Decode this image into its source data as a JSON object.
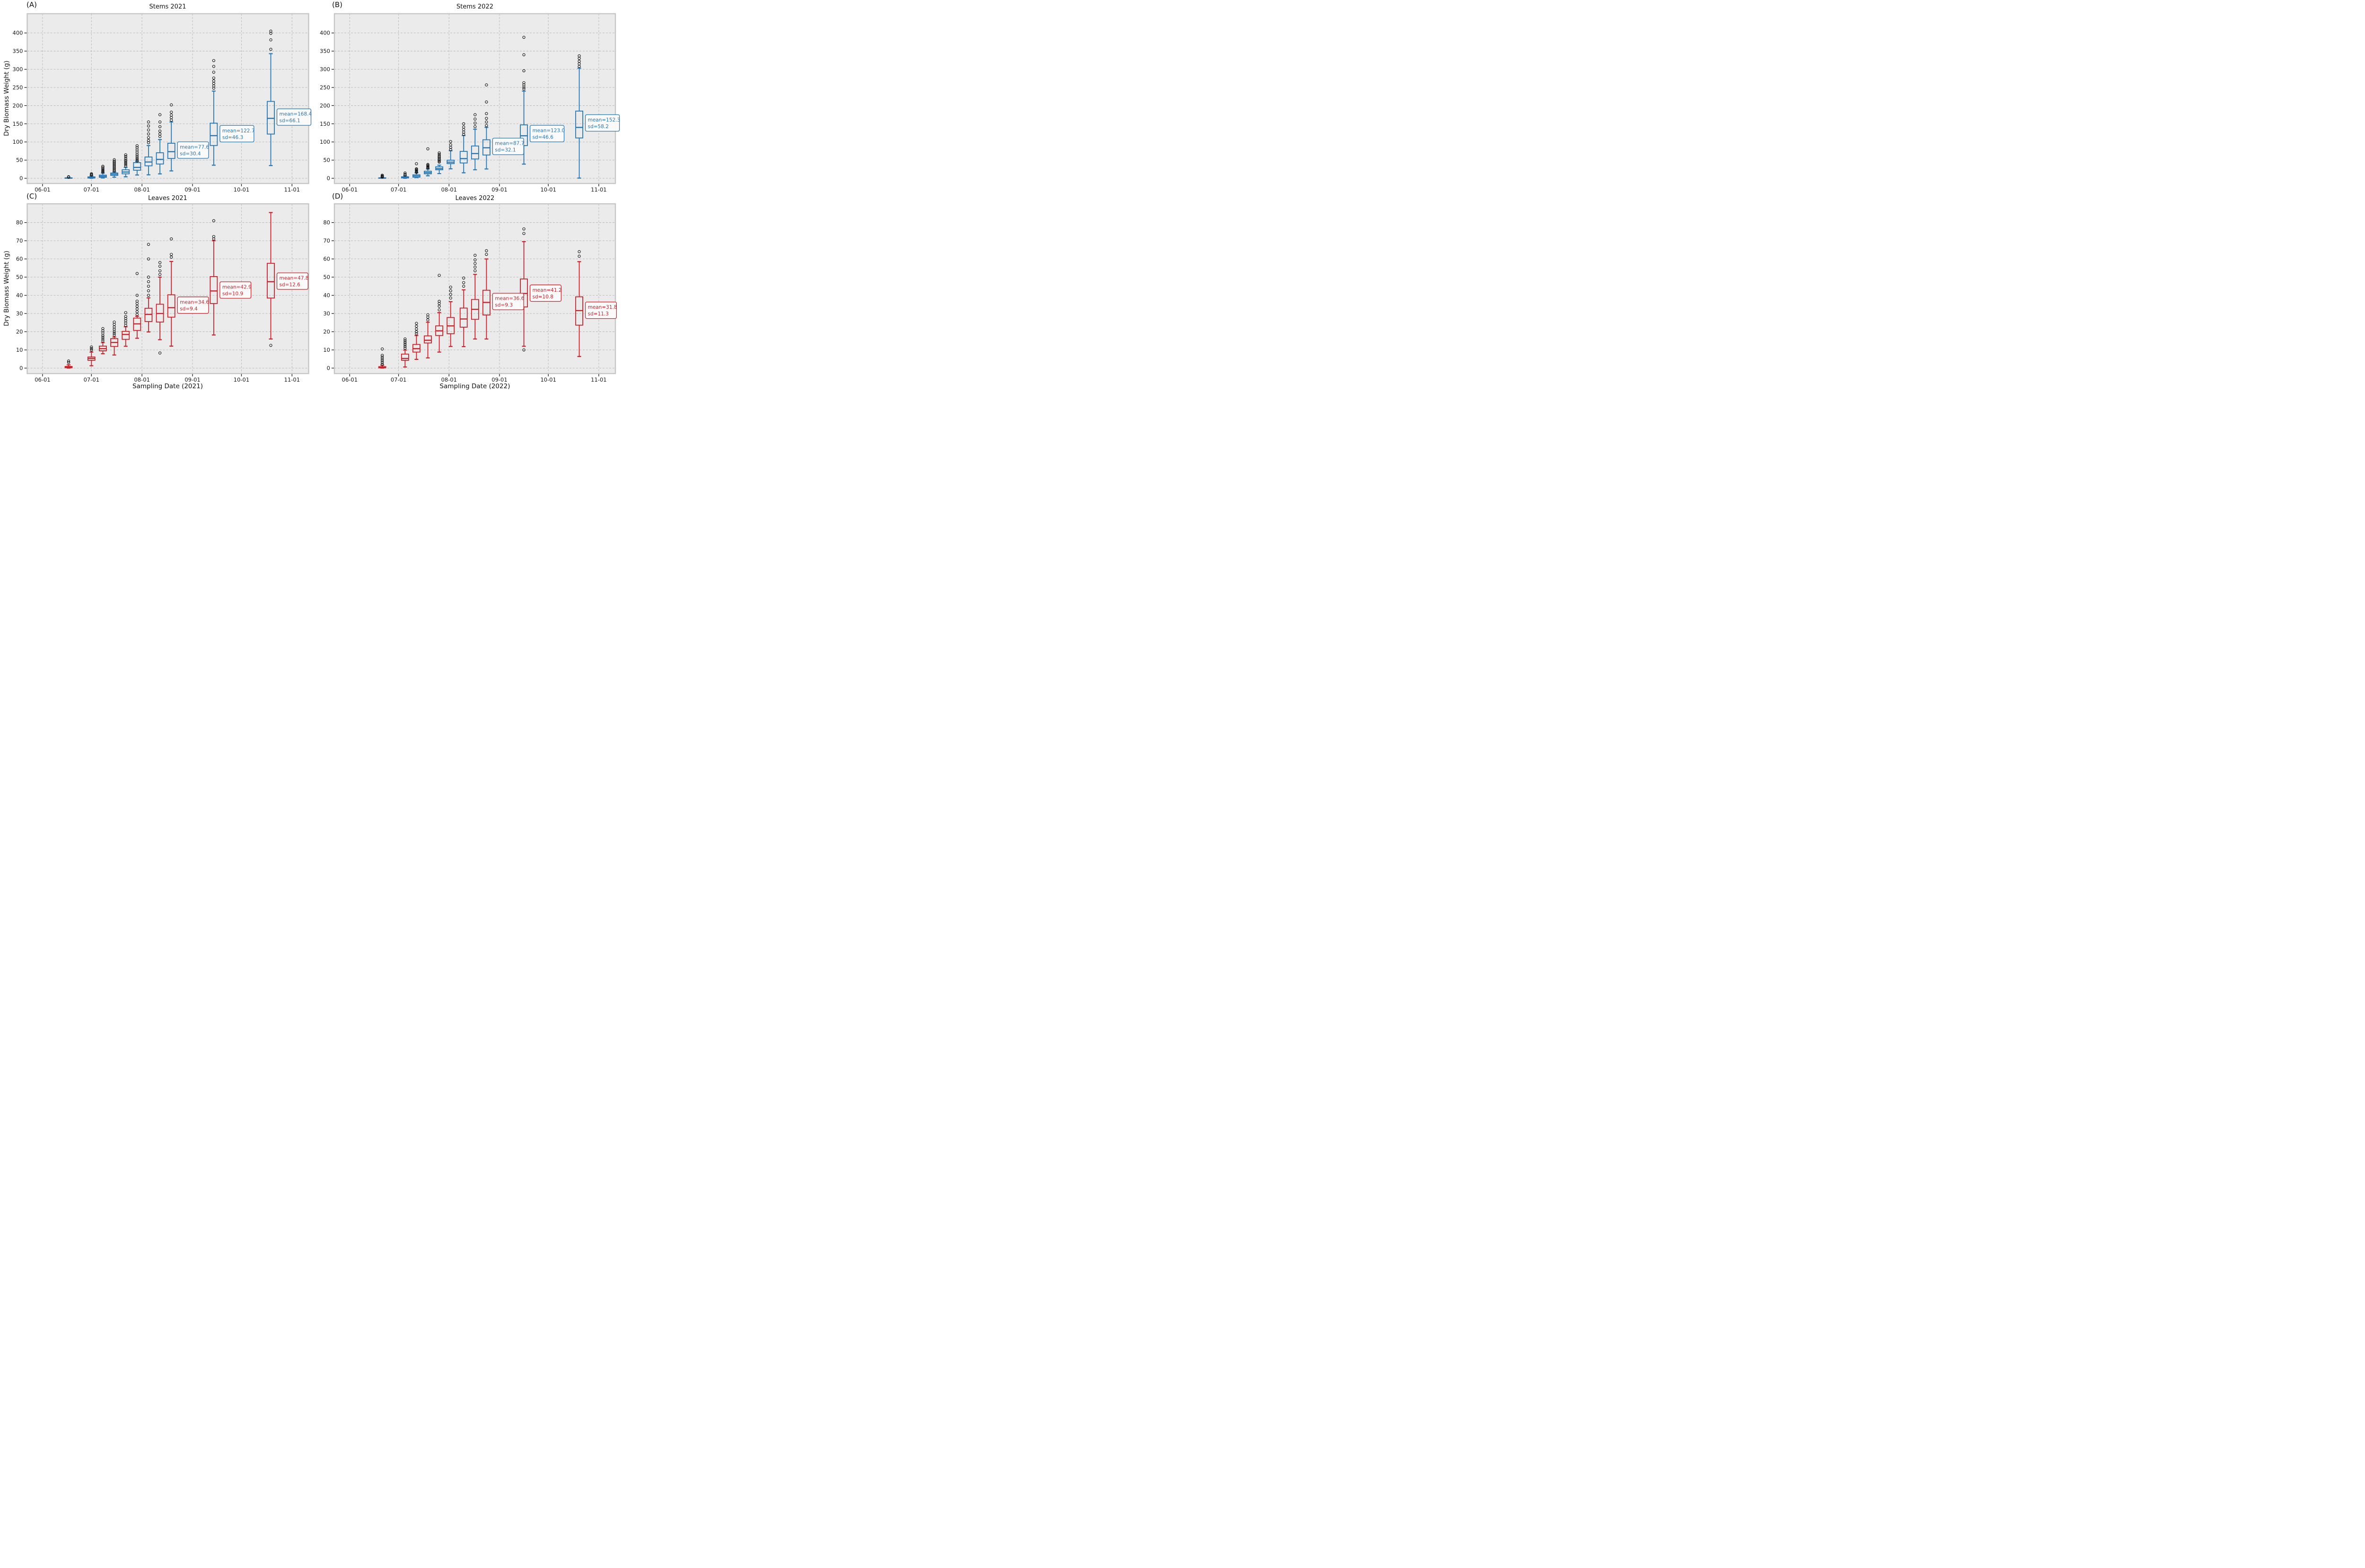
{
  "figure": {
    "background": "#ffffff",
    "plot_background": "#ebebeb",
    "grid_color": "#b5b5b5",
    "spine_color": "#c6c6c6",
    "tick_color": "#1a1a1a",
    "outlier_color": "#111111",
    "annotation_background": "#fbfbfb",
    "stems_color": "#2878b5",
    "leaves_color": "#c9232b"
  },
  "chart_data": [
    {
      "panel": "A",
      "letter": "(A)",
      "title": "Stems 2021",
      "type": "boxplot",
      "color": "#2878b5",
      "ylabel": "Dry Biomass Weight (g)",
      "xlabel": null,
      "grid": true,
      "xticks": [
        "06-01",
        "07-01",
        "08-01",
        "09-01",
        "10-01",
        "11-01"
      ],
      "yticks": [
        0,
        50,
        100,
        150,
        200,
        250,
        300,
        350,
        400
      ],
      "xlim_days": [
        -9.4,
        163.2
      ],
      "ylim": [
        -14.3,
        453
      ],
      "boxes": [
        {
          "date": "06-17",
          "low": 0,
          "q1": 0.2,
          "median": 0.6,
          "q3": 1.2,
          "high": 2.2,
          "outliers": [
            3.2,
            4.2
          ]
        },
        {
          "date": "07-01",
          "low": 0,
          "q1": 0.6,
          "median": 2,
          "q3": 3.8,
          "high": 6.2,
          "outliers": [
            8.8,
            10.5,
            12.5
          ]
        },
        {
          "date": "07-08",
          "low": 0.8,
          "q1": 2.6,
          "median": 5.6,
          "q3": 8.7,
          "high": 14.2,
          "outliers": [
            17,
            19,
            21,
            23,
            26,
            30,
            33
          ]
        },
        {
          "date": "07-15",
          "low": 3,
          "q1": 7.9,
          "median": 11.2,
          "q3": 14.5,
          "high": 17.2,
          "outliers": [
            20,
            23,
            26,
            29,
            32,
            35,
            38,
            41,
            44,
            47,
            51
          ]
        },
        {
          "date": "07-22",
          "low": 4.1,
          "q1": 12.3,
          "median": 17.3,
          "q3": 23.3,
          "high": 29.9,
          "outliers": [
            34,
            38,
            42,
            46,
            50,
            55,
            60,
            64.5
          ]
        },
        {
          "date": "07-29",
          "low": 9,
          "q1": 22.2,
          "median": 29.9,
          "q3": 43.1,
          "high": 46.4,
          "outliers": [
            48,
            52,
            56,
            61,
            66,
            72,
            78,
            84,
            89.5
          ]
        },
        {
          "date": "08-05",
          "low": 9.5,
          "q1": 34.3,
          "median": 44.8,
          "q3": 58.6,
          "high": 90,
          "outliers": [
            98,
            104,
            112,
            122,
            133,
            144,
            155
          ]
        },
        {
          "date": "08-12",
          "low": 12.1,
          "q1": 39.3,
          "median": 52,
          "q3": 70.2,
          "high": 106.5,
          "outliers": [
            115,
            122,
            130,
            142,
            155,
            175
          ]
        },
        {
          "date": "08-19",
          "low": 20.3,
          "q1": 54.5,
          "median": 73.2,
          "q3": 96.4,
          "high": 155,
          "outliers": [
            160,
            167,
            174,
            182,
            202
          ],
          "mean": 77.6,
          "sd": 30.4,
          "label_lines": [
            "mean=77.6",
            "sd=30.4"
          ]
        },
        {
          "date": "09-14",
          "low": 36,
          "q1": 90.2,
          "median": 117.3,
          "q3": 151.7,
          "high": 240,
          "outliers": [
            248,
            254,
            261,
            268,
            276,
            292,
            308,
            324
          ],
          "mean": 122.7,
          "sd": 46.3,
          "label_lines": [
            "mean=122.7",
            "sd=46.3"
          ]
        },
        {
          "date": "10-19",
          "low": 35,
          "q1": 121.7,
          "median": 165,
          "q3": 211.6,
          "high": 343,
          "outliers": [
            355,
            381,
            399,
            405
          ],
          "mean": 168.4,
          "sd": 66.1,
          "label_lines": [
            "mean=168.4",
            "sd=66.1"
          ]
        }
      ]
    },
    {
      "panel": "B",
      "letter": "(B)",
      "title": "Stems 2022",
      "type": "boxplot",
      "color": "#2878b5",
      "ylabel": null,
      "xlabel": null,
      "grid": true,
      "xticks": [
        "06-01",
        "07-01",
        "08-01",
        "09-01",
        "10-01",
        "11-01"
      ],
      "yticks": [
        0,
        50,
        100,
        150,
        200,
        250,
        300,
        350,
        400
      ],
      "xlim_days": [
        -9.4,
        163.2
      ],
      "ylim": [
        -14.3,
        453
      ],
      "boxes": [
        {
          "date": "06-21",
          "low": 0,
          "q1": 0.2,
          "median": 0.7,
          "q3": 1.3,
          "high": 2.6,
          "outliers": [
            3.5,
            5,
            6.5,
            8.5
          ]
        },
        {
          "date": "07-05",
          "low": 0,
          "q1": 1,
          "median": 2.2,
          "q3": 4.1,
          "high": 6.3,
          "outliers": [
            9,
            11,
            14.5
          ]
        },
        {
          "date": "07-12",
          "low": 1.9,
          "q1": 3,
          "median": 6.3,
          "q3": 9.6,
          "high": 15.1,
          "outliers": [
            16.5,
            18,
            20,
            22,
            24,
            26,
            40
          ]
        },
        {
          "date": "07-19",
          "low": 6.8,
          "q1": 12.3,
          "median": 15.6,
          "q3": 19.5,
          "high": 25.6,
          "outliers": [
            28,
            30,
            32,
            34,
            36,
            38,
            81
          ]
        },
        {
          "date": "07-26",
          "low": 12.9,
          "q1": 23.4,
          "median": 26.7,
          "q3": 31.6,
          "high": 36,
          "outliers": [
            44.5,
            47,
            50,
            53,
            56,
            59,
            62,
            66,
            70
          ]
        },
        {
          "date": "08-02",
          "low": 26,
          "q1": 40.4,
          "median": 44.3,
          "q3": 49.8,
          "high": 75.7,
          "outliers": [
            79,
            85,
            92,
            101
          ]
        },
        {
          "date": "08-10",
          "low": 15.1,
          "q1": 42.1,
          "median": 54.2,
          "q3": 74,
          "high": 117.5,
          "outliers": [
            121,
            127,
            134,
            141,
            150
          ]
        },
        {
          "date": "08-17",
          "low": 23.4,
          "q1": 53.1,
          "median": 68,
          "q3": 88.9,
          "high": 135,
          "outliers": [
            142,
            152,
            163,
            175
          ]
        },
        {
          "date": "08-24",
          "low": 25.6,
          "q1": 64.1,
          "median": 84,
          "q3": 106,
          "high": 140,
          "outliers": [
            145,
            155,
            165,
            178,
            210,
            257
          ],
          "mean": 87.7,
          "sd": 32.1,
          "label_lines": [
            "mean=87.7",
            "sd=32.1"
          ]
        },
        {
          "date": "09-16",
          "low": 39,
          "q1": 90,
          "median": 117,
          "q3": 147,
          "high": 240,
          "outliers": [
            246,
            251,
            257,
            263,
            296,
            340,
            388
          ],
          "mean": 123.0,
          "sd": 46.6,
          "label_lines": [
            "mean=123.0",
            "sd=46.6"
          ]
        },
        {
          "date": "10-20",
          "low": 0.5,
          "q1": 111,
          "median": 140,
          "q3": 185,
          "high": 303,
          "outliers": [
            308,
            315,
            322,
            330,
            337
          ],
          "mean": 152.3,
          "sd": 58.2,
          "label_lines": [
            "mean=152.3",
            "sd=58.2"
          ]
        }
      ]
    },
    {
      "panel": "C",
      "letter": "(C)",
      "title": "Leaves 2021",
      "type": "boxplot",
      "color": "#c9232b",
      "ylabel": "Dry Biomass Weight (g)",
      "xlabel": "Sampling Date (2021)",
      "grid": true,
      "xticks": [
        "06-01",
        "07-01",
        "08-01",
        "09-01",
        "10-01",
        "11-01"
      ],
      "yticks": [
        0,
        10,
        20,
        30,
        40,
        50,
        60,
        70,
        80
      ],
      "xlim_days": [
        -9.4,
        163.2
      ],
      "ylim": [
        -3,
        90.3
      ],
      "boxes": [
        {
          "date": "06-17",
          "low": 0,
          "q1": 0.2,
          "median": 0.5,
          "q3": 0.9,
          "high": 1.8,
          "outliers": [
            3.1,
            3.9
          ]
        },
        {
          "date": "07-01",
          "low": 1.3,
          "q1": 4.3,
          "median": 5.3,
          "q3": 6.1,
          "high": 8.8,
          "outliers": [
            9.9,
            10.7,
            11.6
          ]
        },
        {
          "date": "07-08",
          "low": 7.9,
          "q1": 9.5,
          "median": 10.7,
          "q3": 12.1,
          "high": 14,
          "outliers": [
            15,
            16,
            17,
            18,
            19.3,
            20.5,
            21.7
          ]
        },
        {
          "date": "07-15",
          "low": 7.2,
          "q1": 11.9,
          "median": 14.1,
          "q3": 16.2,
          "high": 17.1,
          "outliers": [
            18.2,
            19.2,
            20.2,
            21.4,
            22.6,
            24,
            25.3
          ]
        },
        {
          "date": "07-22",
          "low": 12,
          "q1": 15.8,
          "median": 18.5,
          "q3": 20.2,
          "high": 22.7,
          "outliers": [
            23.5,
            24.8,
            26,
            27.2,
            28.4,
            30.5
          ]
        },
        {
          "date": "07-29",
          "low": 16.4,
          "q1": 20.7,
          "median": 24.3,
          "q3": 27.5,
          "high": 28.5,
          "outliers": [
            29.5,
            31,
            32.5,
            34,
            35.5,
            36.8,
            40,
            52
          ]
        },
        {
          "date": "08-05",
          "low": 19.9,
          "q1": 25.6,
          "median": 29.5,
          "q3": 32.9,
          "high": 38.6,
          "outliers": [
            40,
            42.5,
            45,
            47.5,
            50,
            60,
            68
          ]
        },
        {
          "date": "08-12",
          "low": 15.6,
          "q1": 25.3,
          "median": 30,
          "q3": 35.1,
          "high": 50,
          "outliers": [
            8.3,
            51.5,
            53.5,
            56,
            58
          ]
        },
        {
          "date": "08-19",
          "low": 12.1,
          "q1": 28,
          "median": 33.2,
          "q3": 40.3,
          "high": 58.6,
          "outliers": [
            61,
            62.5,
            71
          ],
          "mean": 34.6,
          "sd": 9.4,
          "label_lines": [
            "mean=34.6",
            "sd=9.4"
          ]
        },
        {
          "date": "09-14",
          "low": 18.2,
          "q1": 35.5,
          "median": 42.4,
          "q3": 50.3,
          "high": 70,
          "outliers": [
            71,
            72.3,
            81
          ],
          "mean": 42.9,
          "sd": 10.9,
          "label_lines": [
            "mean=42.9",
            "sd=10.9"
          ]
        },
        {
          "date": "10-19",
          "low": 16,
          "q1": 38.5,
          "median": 47.5,
          "q3": 57.6,
          "high": 85.5,
          "outliers": [
            12.5
          ],
          "mean": 47.8,
          "sd": 12.6,
          "label_lines": [
            "mean=47.8",
            "sd=12.6"
          ]
        }
      ]
    },
    {
      "panel": "D",
      "letter": "(D)",
      "title": "Leaves 2022",
      "type": "boxplot",
      "color": "#c9232b",
      "ylabel": null,
      "xlabel": "Sampling Date (2022)",
      "grid": true,
      "xticks": [
        "06-01",
        "07-01",
        "08-01",
        "09-01",
        "10-01",
        "11-01"
      ],
      "yticks": [
        0,
        10,
        20,
        30,
        40,
        50,
        60,
        70,
        80
      ],
      "xlim_days": [
        -9.4,
        163.2
      ],
      "ylim": [
        -3,
        90.3
      ],
      "boxes": [
        {
          "date": "06-21",
          "low": 0,
          "q1": 0.15,
          "median": 0.4,
          "q3": 0.8,
          "high": 1.6,
          "outliers": [
            2,
            3,
            4,
            5,
            6,
            7,
            10.5
          ]
        },
        {
          "date": "07-05",
          "low": 0.6,
          "q1": 4.3,
          "median": 5.3,
          "q3": 7.7,
          "high": 9.9,
          "outliers": [
            11,
            12,
            13,
            14,
            15,
            16
          ]
        },
        {
          "date": "07-12",
          "low": 4.8,
          "q1": 8.8,
          "median": 10.7,
          "q3": 13,
          "high": 17.9,
          "outliers": [
            18.9,
            20,
            21.5,
            23,
            24.6
          ]
        },
        {
          "date": "07-19",
          "low": 5.6,
          "q1": 13.8,
          "median": 15.3,
          "q3": 17.7,
          "high": 25.2,
          "outliers": [
            26.5,
            28,
            29.3
          ]
        },
        {
          "date": "07-26",
          "low": 8.8,
          "q1": 17.9,
          "median": 20.5,
          "q3": 23.2,
          "high": 30.5,
          "outliers": [
            32,
            34,
            35.5,
            36.7,
            51
          ]
        },
        {
          "date": "08-02",
          "low": 11.9,
          "q1": 18.9,
          "median": 23.2,
          "q3": 27.8,
          "high": 36.5,
          "outliers": [
            38.5,
            40.5,
            42.5,
            44.5
          ]
        },
        {
          "date": "08-10",
          "low": 11.8,
          "q1": 22.5,
          "median": 27,
          "q3": 33,
          "high": 43,
          "outliers": [
            45,
            47,
            49.5
          ]
        },
        {
          "date": "08-17",
          "low": 16,
          "q1": 26.8,
          "median": 32.3,
          "q3": 37.7,
          "high": 51.5,
          "outliers": [
            53.5,
            55.5,
            57.5,
            59.5,
            62
          ]
        },
        {
          "date": "08-24",
          "low": 16,
          "q1": 29.2,
          "median": 36.1,
          "q3": 42.8,
          "high": 60,
          "outliers": [
            62.5,
            64.5
          ],
          "mean": 36.6,
          "sd": 9.3,
          "label_lines": [
            "mean=36.6",
            "sd=9.3"
          ]
        },
        {
          "date": "09-16",
          "low": 12,
          "q1": 33.6,
          "median": 41,
          "q3": 49,
          "high": 69.5,
          "outliers": [
            10,
            74,
            76.5
          ],
          "mean": 41.2,
          "sd": 10.8,
          "label_lines": [
            "mean=41.2",
            "sd=10.8"
          ]
        },
        {
          "date": "10-20",
          "low": 6.4,
          "q1": 23.6,
          "median": 31.6,
          "q3": 39.2,
          "high": 58.5,
          "outliers": [
            61.5,
            64
          ],
          "mean": 31.8,
          "sd": 11.3,
          "label_lines": [
            "mean=31.8",
            "sd=11.3"
          ]
        }
      ]
    }
  ]
}
